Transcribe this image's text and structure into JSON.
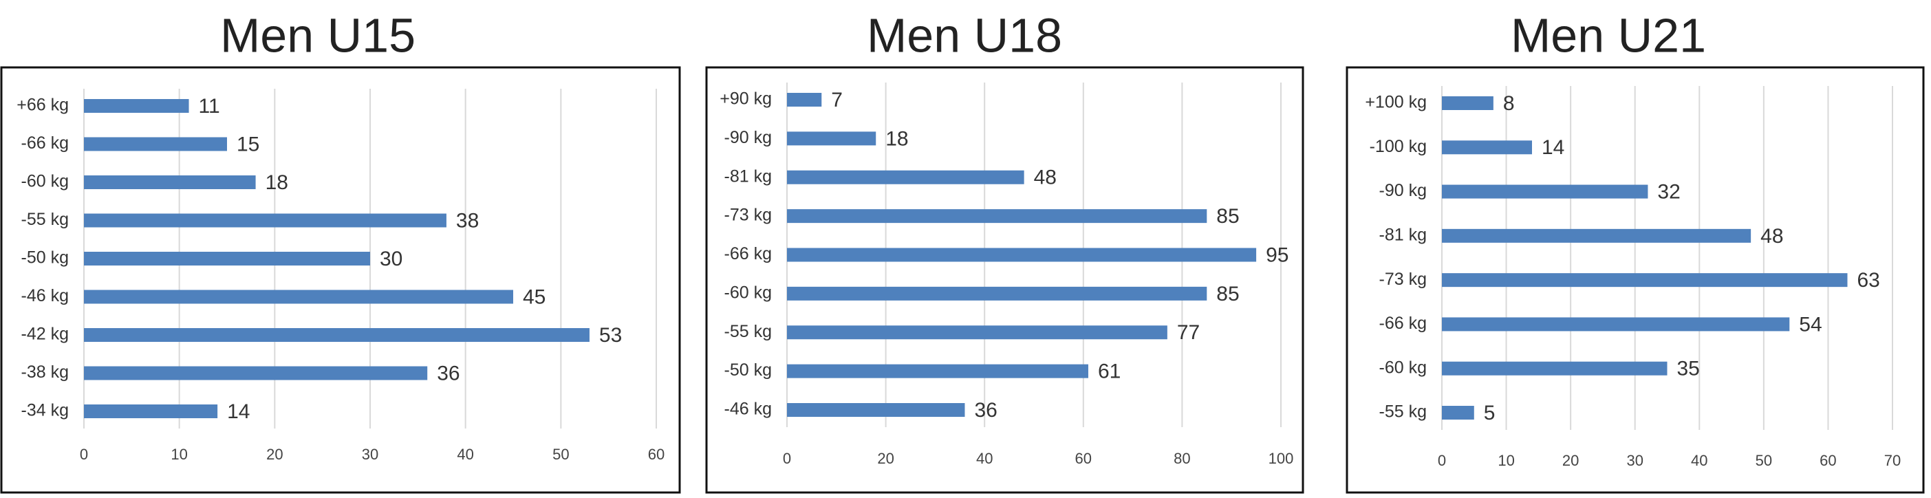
{
  "chart_data": [
    {
      "type": "bar",
      "orientation": "horizontal",
      "title": "Men U15",
      "categories": [
        "+66 kg",
        "-66 kg",
        "-60 kg",
        "-55 kg",
        "-50 kg",
        "-46 kg",
        "-42 kg",
        "-38 kg",
        "-34 kg"
      ],
      "values": [
        11,
        15,
        18,
        38,
        30,
        45,
        53,
        36,
        14
      ],
      "color": "#4f81bd",
      "xlim": [
        0,
        60
      ],
      "xticks": [
        0,
        10,
        20,
        30,
        40,
        50,
        60
      ],
      "grid": true
    },
    {
      "type": "bar",
      "orientation": "horizontal",
      "title": "Men U18",
      "categories": [
        "+90 kg",
        "-90 kg",
        "-81 kg",
        "-73 kg",
        "-66 kg",
        "-60 kg",
        "-55 kg",
        "-50 kg",
        "-46 kg"
      ],
      "values": [
        7,
        18,
        48,
        85,
        95,
        85,
        77,
        61,
        36
      ],
      "color": "#4f81bd",
      "xlim": [
        0,
        100
      ],
      "xticks": [
        0,
        20,
        40,
        60,
        80,
        100
      ],
      "grid": true
    },
    {
      "type": "bar",
      "orientation": "horizontal",
      "title": "Men U21",
      "categories": [
        "+100 kg",
        "-100 kg",
        "-90 kg",
        "-81 kg",
        "-73 kg",
        "-66 kg",
        "-60 kg",
        "-55 kg"
      ],
      "values": [
        8,
        14,
        32,
        48,
        63,
        54,
        35,
        5
      ],
      "color": "#4f81bd",
      "xlim": [
        0,
        70
      ],
      "xticks": [
        0,
        10,
        20,
        30,
        40,
        50,
        60,
        70
      ],
      "grid": true
    }
  ]
}
